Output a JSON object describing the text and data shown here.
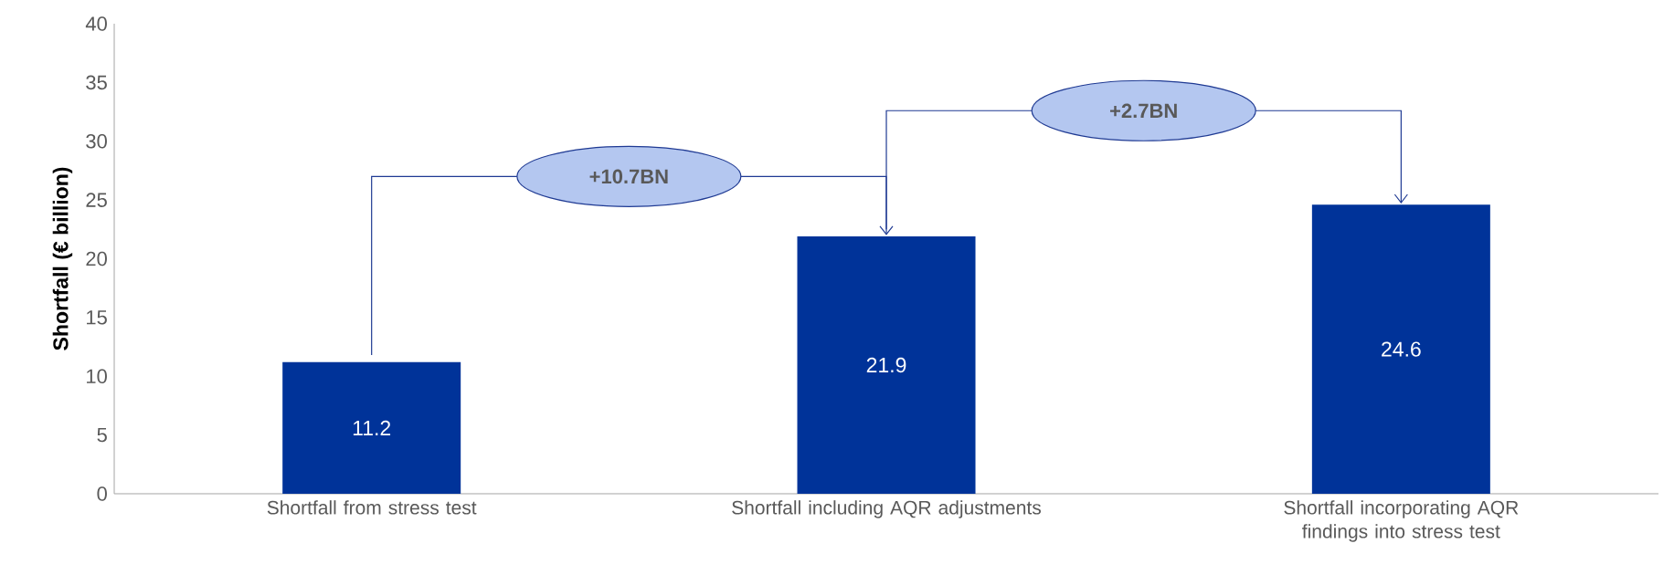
{
  "chart_data": {
    "type": "bar",
    "ylabel": "Shortfall (€ billion)",
    "categories": [
      "Shortfall from stress test",
      "Shortfall including AQR adjustments",
      "Shortfall incorporating AQR findings into stress test"
    ],
    "values": [
      11.2,
      21.9,
      24.6
    ],
    "color": "#003399",
    "data_labels": true,
    "ylim": [
      0,
      40
    ],
    "yticks": [
      0,
      5,
      10,
      15,
      20,
      25,
      30,
      35,
      40
    ],
    "annotations": [
      "+10.7BN",
      "+2.7BN"
    ]
  }
}
